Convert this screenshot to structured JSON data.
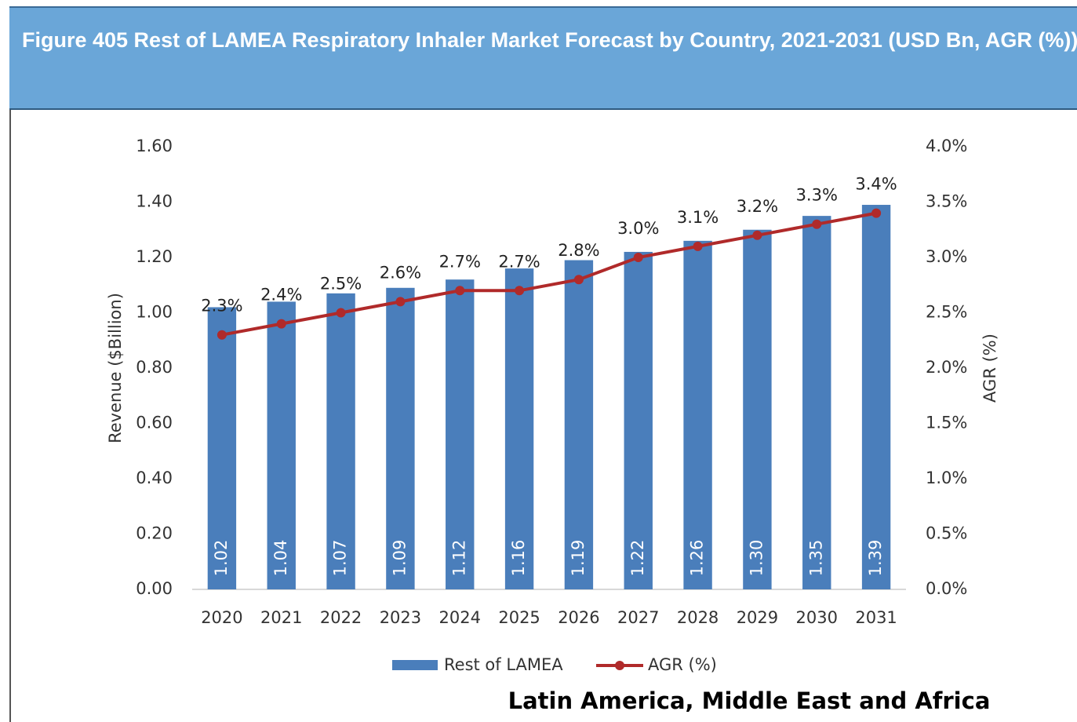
{
  "chart_data": {
    "type": "bar",
    "title": "Figure 405 Rest of LAMEA Respiratory Inhaler Market Forecast by Country, 2021-2031 (USD Bn, AGR (%))",
    "ylabel": "Revenue ($Billion)",
    "y2label": "AGR (%)",
    "categories": [
      "2020",
      "2021",
      "2022",
      "2023",
      "2024",
      "2025",
      "2026",
      "2027",
      "2028",
      "2029",
      "2030",
      "2031"
    ],
    "series": [
      {
        "name": "Rest of LAMEA",
        "color": "#4a7ebb",
        "values": [
          1.02,
          1.04,
          1.07,
          1.09,
          1.12,
          1.16,
          1.19,
          1.22,
          1.26,
          1.3,
          1.35,
          1.39
        ],
        "value_labels": [
          "1.02",
          "1.04",
          "1.07",
          "1.09",
          "1.12",
          "1.16",
          "1.19",
          "1.22",
          "1.26",
          "1.30",
          "1.35",
          "1.39"
        ]
      },
      {
        "name": "AGR (%)",
        "color": "#b02a2a",
        "type": "line",
        "axis": "y2",
        "values": [
          2.3,
          2.4,
          2.5,
          2.6,
          2.7,
          2.7,
          2.8,
          3.0,
          3.1,
          3.2,
          3.3,
          3.4
        ],
        "value_labels": [
          "2.3%",
          "2.4%",
          "2.5%",
          "2.6%",
          "2.7%",
          "2.7%",
          "2.8%",
          "3.0%",
          "3.1%",
          "3.2%",
          "3.3%",
          "3.4%"
        ]
      }
    ],
    "ylim": [
      0,
      1.6
    ],
    "yticks": [
      {
        "value": 0,
        "label": "0.00"
      },
      {
        "value": 0.2,
        "label": "0.20"
      },
      {
        "value": 0.4,
        "label": "0.40"
      },
      {
        "value": 0.6,
        "label": "0.60"
      },
      {
        "value": 0.8,
        "label": "0.80"
      },
      {
        "value": 1.0,
        "label": "1.00"
      },
      {
        "value": 1.2,
        "label": "1.20"
      },
      {
        "value": 1.4,
        "label": "1.40"
      },
      {
        "value": 1.6,
        "label": "1.60"
      }
    ],
    "y2lim": [
      0,
      4
    ],
    "y2ticks": [
      {
        "value": 0,
        "label": "0.0%"
      },
      {
        "value": 0.5,
        "label": "0.5%"
      },
      {
        "value": 1.0,
        "label": "1.0%"
      },
      {
        "value": 1.5,
        "label": "1.5%"
      },
      {
        "value": 2.0,
        "label": "2.0%"
      },
      {
        "value": 2.5,
        "label": "2.5%"
      },
      {
        "value": 3.0,
        "label": "3.0%"
      },
      {
        "value": 3.5,
        "label": "3.5%"
      },
      {
        "value": 4.0,
        "label": "4.0%"
      }
    ],
    "legend": "bottom",
    "annotation": "Latin America, Middle East and Africa"
  }
}
